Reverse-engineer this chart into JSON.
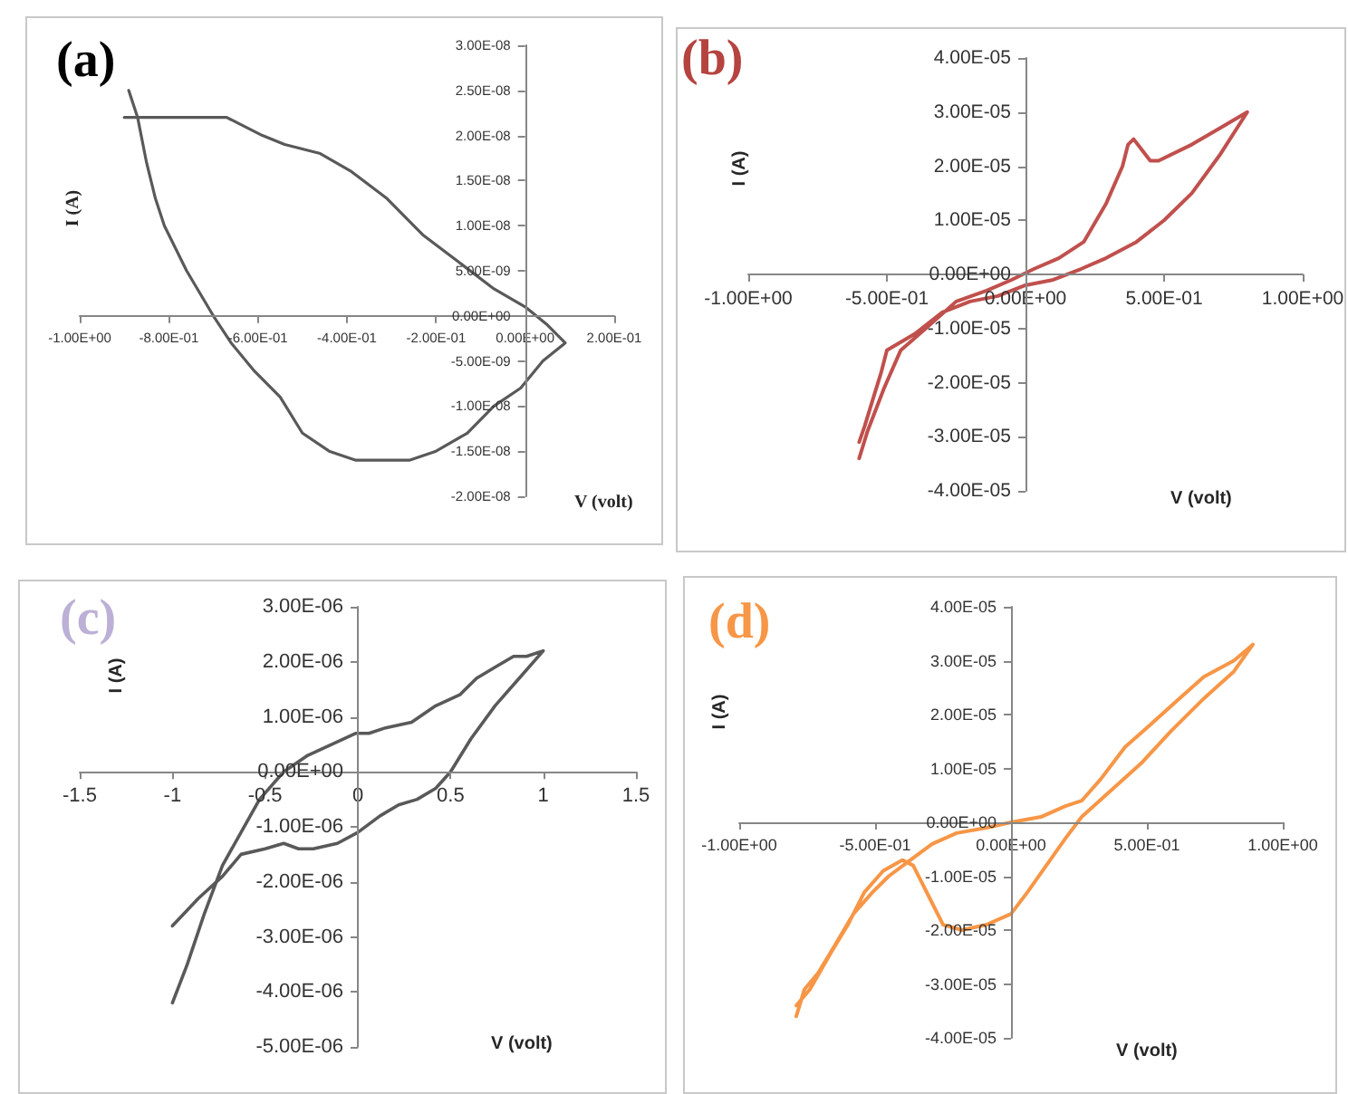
{
  "chart_data": [
    {
      "type": "line",
      "title": "(a)",
      "xlabel": "V (volt)",
      "ylabel": "I (A)",
      "xlim": [
        -1,
        0.2
      ],
      "ylim": [
        -2e-08,
        3e-08
      ],
      "xticks": [
        {
          "value": -1,
          "label": "-1.00E+00"
        },
        {
          "value": -0.8,
          "label": "-8.00E-01"
        },
        {
          "value": -0.6,
          "label": "-6.00E-01"
        },
        {
          "value": -0.4,
          "label": "-4.00E-01"
        },
        {
          "value": -0.2,
          "label": "-2.00E-01"
        },
        {
          "value": 0,
          "label": "0.00E+00"
        },
        {
          "value": 0.2,
          "label": "2.00E-01"
        }
      ],
      "yticks": [
        {
          "value": -2e-08,
          "label": "-2.00E-08"
        },
        {
          "value": -1.5e-08,
          "label": "-1.50E-08"
        },
        {
          "value": -1e-08,
          "label": "-1.00E-08"
        },
        {
          "value": -5e-09,
          "label": "-5.00E-09"
        },
        {
          "value": 0,
          "label": "0.00E+00"
        },
        {
          "value": 5e-09,
          "label": "5.00E-09"
        },
        {
          "value": 1e-08,
          "label": "1.00E-08"
        },
        {
          "value": 1.5e-08,
          "label": "1.50E-08"
        },
        {
          "value": 2e-08,
          "label": "2.00E-08"
        },
        {
          "value": 2.5e-08,
          "label": "2.50E-08"
        },
        {
          "value": 3e-08,
          "label": "3.00E-08"
        }
      ],
      "series": [
        {
          "color": "#595959",
          "x": [
            -0.9,
            -0.77,
            -0.67,
            -0.59,
            -0.54,
            -0.46,
            -0.39,
            -0.31,
            -0.23,
            -0.15,
            -0.07,
            0,
            0.05,
            0.09,
            0.04,
            -0.01,
            -0.07,
            -0.13,
            -0.2,
            -0.26,
            -0.31,
            -0.38,
            -0.44,
            -0.5,
            -0.55,
            -0.61,
            -0.66,
            -0.7,
            -0.76,
            -0.81,
            -0.83,
            -0.85,
            -0.87,
            -0.89
          ],
          "values": [
            2.2e-08,
            2.2e-08,
            2.2e-08,
            2e-08,
            1.9e-08,
            1.8e-08,
            1.6e-08,
            1.3e-08,
            9e-09,
            6e-09,
            3e-09,
            1e-09,
            -1e-09,
            -3e-09,
            -5e-09,
            -8e-09,
            -1e-08,
            -1.3e-08,
            -1.5e-08,
            -1.6e-08,
            -1.6e-08,
            -1.6e-08,
            -1.5e-08,
            -1.3e-08,
            -9e-09,
            -6e-09,
            -3e-09,
            0,
            5e-09,
            1e-08,
            1.3e-08,
            1.7e-08,
            2.2e-08,
            2.5e-08
          ]
        }
      ]
    },
    {
      "type": "line",
      "title": "(b)",
      "xlabel": "V (volt)",
      "ylabel": "I (A)",
      "xlim": [
        -1,
        1
      ],
      "ylim": [
        -4e-05,
        4e-05
      ],
      "xticks": [
        {
          "value": -1,
          "label": "-1.00E+00"
        },
        {
          "value": -0.5,
          "label": "-5.00E-01"
        },
        {
          "value": 0,
          "label": "0.00E+00"
        },
        {
          "value": 0.5,
          "label": "5.00E-01"
        },
        {
          "value": 1,
          "label": "1.00E+00"
        }
      ],
      "yticks": [
        {
          "value": -4e-05,
          "label": "-4.00E-05"
        },
        {
          "value": -3e-05,
          "label": "-3.00E-05"
        },
        {
          "value": -2e-05,
          "label": "-2.00E-05"
        },
        {
          "value": -1e-05,
          "label": "-1.00E-05"
        },
        {
          "value": 0,
          "label": "0.00E+00"
        },
        {
          "value": 1e-05,
          "label": "1.00E-05"
        },
        {
          "value": 2e-05,
          "label": "2.00E-05"
        },
        {
          "value": 3e-05,
          "label": "3.00E-05"
        },
        {
          "value": 4e-05,
          "label": "4.00E-05"
        }
      ],
      "series": [
        {
          "color": "#c0504d",
          "x": [
            -0.6,
            -0.57,
            -0.51,
            -0.45,
            -0.36,
            -0.25,
            -0.14,
            -0.05,
            0.03,
            0.12,
            0.21,
            0.29,
            0.35,
            0.37,
            0.39,
            0.42,
            0.45,
            0.48,
            0.6,
            0.7,
            0.8,
            0.7,
            0.6,
            0.5,
            0.4,
            0.29,
            0.2,
            0.1,
            0,
            -0.1,
            -0.2,
            -0.3,
            -0.4,
            -0.5,
            -0.52,
            -0.55,
            -0.58,
            -0.6
          ],
          "values": [
            -3.4e-05,
            -2.9e-05,
            -2.1e-05,
            -1.4e-05,
            -1e-05,
            -5e-06,
            -3e-06,
            -1e-06,
            1e-06,
            3e-06,
            6e-06,
            1.3e-05,
            2e-05,
            2.4e-05,
            2.5e-05,
            2.3e-05,
            2.1e-05,
            2.1e-05,
            2.4e-05,
            2.7e-05,
            3e-05,
            2.2e-05,
            1.5e-05,
            1e-05,
            6e-06,
            3e-06,
            1e-06,
            -1e-06,
            -2e-06,
            -4e-06,
            -5e-06,
            -7e-06,
            -1.1e-05,
            -1.4e-05,
            -1.8e-05,
            -2.3e-05,
            -2.8e-05,
            -3.1e-05
          ]
        }
      ]
    },
    {
      "type": "line",
      "title": "(c)",
      "xlabel": "V (volt)",
      "ylabel": "I (A)",
      "xlim": [
        -1.5,
        1.5
      ],
      "ylim": [
        -5e-06,
        3e-06
      ],
      "xticks": [
        -1.5,
        -1,
        -0.5,
        0,
        0.5,
        1,
        1.5
      ],
      "yticks": [
        {
          "value": -5e-06,
          "label": "-5.00E-06"
        },
        {
          "value": -4e-06,
          "label": "-4.00E-06"
        },
        {
          "value": -3e-06,
          "label": "-3.00E-06"
        },
        {
          "value": -2e-06,
          "label": "-2.00E-06"
        },
        {
          "value": -1e-06,
          "label": "-1.00E-06"
        },
        {
          "value": 0,
          "label": "0.00E+00"
        },
        {
          "value": 1e-06,
          "label": "1.00E-06"
        },
        {
          "value": 2e-06,
          "label": "2.00E-06"
        },
        {
          "value": 3e-06,
          "label": "3.00E-06"
        }
      ],
      "series": [
        {
          "color": "#595959",
          "x": [
            -1,
            -0.86,
            -0.73,
            -0.63,
            -0.5,
            -0.4,
            -0.32,
            -0.24,
            -0.11,
            0,
            0.12,
            0.22,
            0.32,
            0.42,
            0.5,
            0.61,
            0.74,
            0.87,
            1,
            0.91,
            0.84,
            0.74,
            0.64,
            0.55,
            0.42,
            0.29,
            0.15,
            0.06,
            -0.01,
            -0.14,
            -0.27,
            -0.4,
            -0.53,
            -0.63,
            -0.73,
            -0.83,
            -0.92,
            -1
          ],
          "values": [
            -2.8e-06,
            -2.3e-06,
            -1.9e-06,
            -1.5e-06,
            -1.4e-06,
            -1.3e-06,
            -1.4e-06,
            -1.4e-06,
            -1.3e-06,
            -1.1e-06,
            -8e-07,
            -6e-07,
            -5e-07,
            -3e-07,
            0,
            6e-07,
            1.2e-06,
            1.7e-06,
            2.2e-06,
            2.1e-06,
            2.1e-06,
            1.9e-06,
            1.7e-06,
            1.4e-06,
            1.2e-06,
            9e-07,
            8e-07,
            7e-07,
            7e-07,
            5e-07,
            3e-07,
            0,
            -5e-07,
            -1.1e-06,
            -1.7e-06,
            -2.6e-06,
            -3.5e-06,
            -4.2e-06
          ]
        }
      ]
    },
    {
      "type": "line",
      "title": "(d)",
      "xlabel": "V (volt)",
      "ylabel": "I (A)",
      "xlim": [
        -1,
        1
      ],
      "ylim": [
        -4e-05,
        4e-05
      ],
      "xticks": [
        {
          "value": -1,
          "label": "-1.00E+00"
        },
        {
          "value": -0.5,
          "label": "-5.00E-01"
        },
        {
          "value": 0,
          "label": "0.00E+00"
        },
        {
          "value": 0.5,
          "label": "5.00E-01"
        },
        {
          "value": 1,
          "label": "1.00E+00"
        }
      ],
      "yticks": [
        {
          "value": -4e-05,
          "label": "-4.00E-05"
        },
        {
          "value": -3e-05,
          "label": "-3.00E-05"
        },
        {
          "value": -2e-05,
          "label": "-2.00E-05"
        },
        {
          "value": -1e-05,
          "label": "-1.00E-05"
        },
        {
          "value": 0,
          "label": "0.00E+00"
        },
        {
          "value": 1e-05,
          "label": "1.00E-05"
        },
        {
          "value": 2e-05,
          "label": "2.00E-05"
        },
        {
          "value": 3e-05,
          "label": "3.00E-05"
        },
        {
          "value": 4e-05,
          "label": "4.00E-05"
        }
      ],
      "series": [
        {
          "color": "#f79646",
          "x": [
            -0.79,
            -0.76,
            -0.71,
            -0.65,
            -0.58,
            -0.51,
            -0.45,
            -0.37,
            -0.29,
            -0.2,
            -0.09,
            0,
            0.11,
            0.2,
            0.26,
            0.33,
            0.42,
            0.51,
            0.62,
            0.71,
            0.82,
            0.89,
            0.82,
            0.71,
            0.59,
            0.48,
            0.37,
            0.26,
            0.2,
            0.13,
            0.06,
            0,
            -0.09,
            -0.18,
            -0.25,
            -0.29,
            -0.33,
            -0.36,
            -0.4,
            -0.47,
            -0.54,
            -0.6,
            -0.66,
            -0.74,
            -0.79
          ],
          "values": [
            -3.6e-05,
            -3.1e-05,
            -2.8e-05,
            -2.3e-05,
            -1.7e-05,
            -1.3e-05,
            -1e-05,
            -7e-06,
            -4e-06,
            -2e-06,
            -1e-06,
            0,
            1e-06,
            3e-06,
            4e-06,
            8e-06,
            1.4e-05,
            1.8e-05,
            2.3e-05,
            2.7e-05,
            3e-05,
            3.3e-05,
            2.8e-05,
            2.3e-05,
            1.7e-05,
            1.1e-05,
            6e-06,
            1e-06,
            -3e-06,
            -8e-06,
            -1.3e-05,
            -1.7e-05,
            -1.9e-05,
            -2e-05,
            -1.9e-05,
            -1.5e-05,
            -1.1e-05,
            -8e-06,
            -7e-06,
            -9e-06,
            -1.3e-05,
            -1.9e-05,
            -2.4e-05,
            -3.1e-05,
            -3.4e-05
          ]
        }
      ]
    }
  ]
}
